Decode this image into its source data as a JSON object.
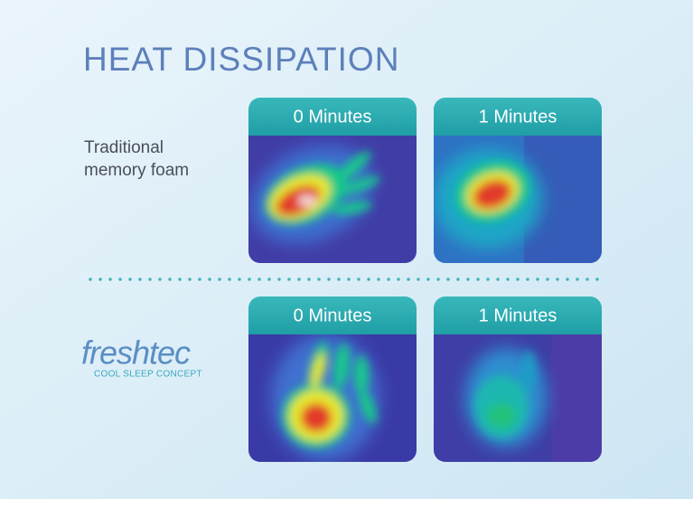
{
  "title": "HEAT DISSIPATION",
  "rows": [
    {
      "label_lines": [
        "Traditional",
        "memory foam"
      ],
      "panels": [
        {
          "header": "0 Minutes"
        },
        {
          "header": "1 Minutes"
        }
      ]
    },
    {
      "logo": {
        "name": "freshtec",
        "tagline": "COOL SLEEP CONCEPT"
      },
      "panels": [
        {
          "header": "0 Minutes"
        },
        {
          "header": "1 Minutes"
        }
      ]
    }
  ]
}
